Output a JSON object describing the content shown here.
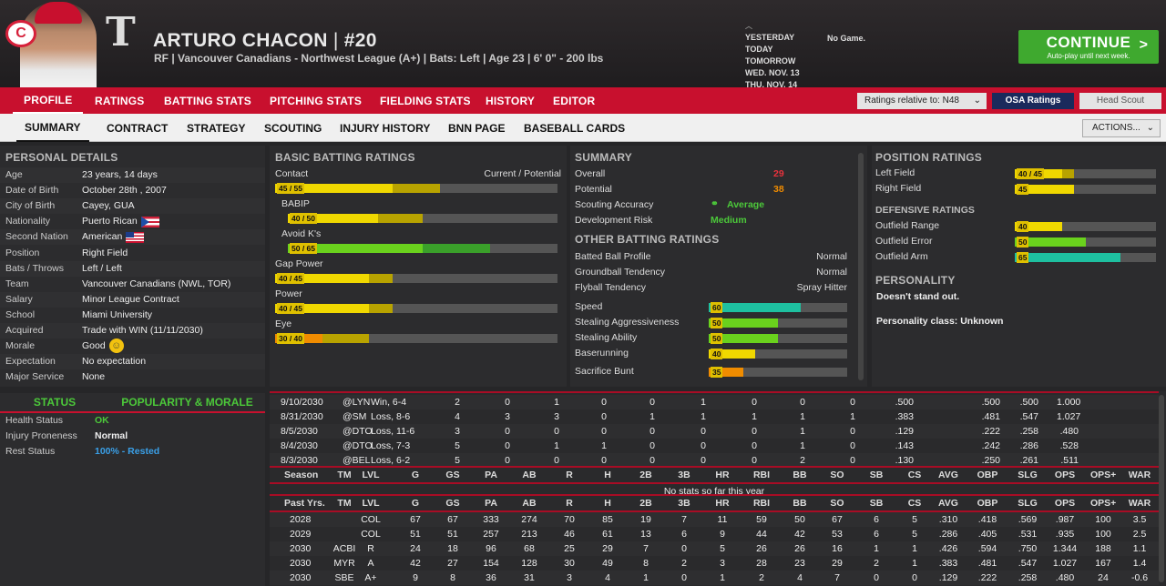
{
  "header": {
    "team_logo": "C",
    "t_logo": "T",
    "name": "ARTURO CHACON",
    "sep": "|",
    "number": "#20",
    "info": "RF | Vancouver Canadians - Northwest League (A+) | Bats: Left | Age 23 | 6' 0\" - 200 lbs"
  },
  "schedule": {
    "days": [
      "YESTERDAY",
      "TODAY",
      "TOMORROW",
      "WED. NOV. 13",
      "THU. NOV. 14"
    ],
    "today_game": "No Game."
  },
  "continue": {
    "label": "CONTINUE",
    "sub": "Auto-play until next week.",
    "arrow": ">"
  },
  "nav": {
    "tabs": [
      "PROFILE",
      "RATINGS",
      "BATTING STATS",
      "PITCHING STATS",
      "FIELDING STATS",
      "HISTORY",
      "EDITOR"
    ],
    "ratings_relative": "Ratings relative to: N48",
    "osa": "OSA Ratings",
    "scout": "Head Scout"
  },
  "subnav": {
    "tabs": [
      "SUMMARY",
      "CONTRACT",
      "STRATEGY",
      "SCOUTING",
      "INJURY HISTORY",
      "BNN PAGE",
      "BASEBALL CARDS"
    ],
    "actions": "ACTIONS..."
  },
  "personal": {
    "title": "PERSONAL DETAILS",
    "rows": [
      {
        "k": "Age",
        "v": "23 years, 14 days"
      },
      {
        "k": "Date of Birth",
        "v": "October 28th , 2007"
      },
      {
        "k": "City of Birth",
        "v": "Cayey, GUA"
      },
      {
        "k": "Nationality",
        "v": "Puerto Rican"
      },
      {
        "k": "Second Nation",
        "v": "American"
      },
      {
        "k": "Position",
        "v": "Right Field"
      },
      {
        "k": "Bats / Throws",
        "v": "Left / Left"
      },
      {
        "k": "Team",
        "v": "Vancouver Canadians (NWL, TOR)"
      },
      {
        "k": "Salary",
        "v": "Minor League Contract"
      },
      {
        "k": "School",
        "v": "Miami University"
      },
      {
        "k": "Acquired",
        "v": "Trade with WIN (11/11/2030)"
      },
      {
        "k": "Morale",
        "v": "Good"
      },
      {
        "k": "Expectation",
        "v": "No expectation"
      },
      {
        "k": "Major Service",
        "v": "None"
      }
    ]
  },
  "status": {
    "tab1": "STATUS",
    "tab2": "POPULARITY & MORALE",
    "rows": [
      {
        "k": "Health Status",
        "v": "OK",
        "color": "#4cc93a"
      },
      {
        "k": "Injury Proneness",
        "v": "Normal",
        "color": "#eeeeee"
      },
      {
        "k": "Rest Status",
        "v": "100% - Rested",
        "color": "#3aa0e8"
      }
    ]
  },
  "batting": {
    "title": "BASIC BATTING RATINGS",
    "col": "Current / Potential",
    "ratings": [
      {
        "name": "Contact",
        "label": "45 / 55",
        "cur": 45,
        "pot": 55,
        "color": "#f0d800"
      },
      {
        "name": "BABIP",
        "label": "40 / 50",
        "cur": 40,
        "pot": 50,
        "color": "#f0d800"
      },
      {
        "name": "Avoid K's",
        "label": "50 / 65",
        "cur": 50,
        "pot": 65,
        "color": "#6ad21d"
      },
      {
        "name": "Gap Power",
        "label": "40 / 45",
        "cur": 40,
        "pot": 45,
        "color": "#f0d800"
      },
      {
        "name": "Power",
        "label": "40 / 45",
        "cur": 40,
        "pot": 45,
        "color": "#f0d800"
      },
      {
        "name": "Eye",
        "label": "30 / 40",
        "cur": 30,
        "pot": 40,
        "color": "#f08c00"
      }
    ]
  },
  "summary": {
    "title": "SUMMARY",
    "overall_k": "Overall",
    "overall_v": "29",
    "potential_k": "Potential",
    "potential_v": "38",
    "acc_k": "Scouting Accuracy",
    "acc_v": "Average",
    "risk_k": "Development Risk",
    "risk_v": "Medium",
    "other_title": "OTHER BATTING RATINGS",
    "other": [
      {
        "k": "Batted Ball Profile",
        "v": "Normal"
      },
      {
        "k": "Groundball Tendency",
        "v": "Normal"
      },
      {
        "k": "Flyball Tendency",
        "v": "Spray Hitter"
      }
    ],
    "speed": [
      {
        "k": "Speed",
        "v": 60,
        "color": "#1ec0a0"
      },
      {
        "k": "Stealing Aggressiveness",
        "v": 50,
        "color": "#6ad21d"
      },
      {
        "k": "Stealing Ability",
        "v": 50,
        "color": "#6ad21d"
      },
      {
        "k": "Baserunning",
        "v": 40,
        "color": "#f0d800"
      },
      {
        "k": "Sacrifice Bunt",
        "v": 35,
        "color": "#f08c00"
      }
    ]
  },
  "position": {
    "title": "POSITION RATINGS",
    "rows": [
      {
        "k": "Left Field",
        "label": "40 / 45",
        "cur": 40,
        "pot": 45,
        "color": "#f0d800"
      },
      {
        "k": "Right Field",
        "label": "45",
        "cur": 45,
        "pot": 45,
        "color": "#f0d800"
      }
    ],
    "def_title": "DEFENSIVE RATINGS",
    "def": [
      {
        "k": "Outfield Range",
        "v": 40,
        "color": "#f0d800"
      },
      {
        "k": "Outfield Error",
        "v": 50,
        "color": "#6ad21d"
      },
      {
        "k": "Outfield Arm",
        "v": 65,
        "color": "#1ec0a0"
      }
    ],
    "pers_title": "PERSONALITY",
    "pers1": "Doesn't stand out.",
    "pers2": "Personality class: Unknown"
  },
  "games": [
    [
      "9/10/2030",
      "@LYN",
      "Win, 6-4",
      "2",
      "0",
      "1",
      "0",
      "0",
      "1",
      "0",
      "0",
      "0",
      ".500",
      ".500",
      ".500",
      "1.000"
    ],
    [
      "8/31/2030",
      "@SM",
      "Loss, 8-6",
      "4",
      "3",
      "3",
      "0",
      "1",
      "1",
      "1",
      "1",
      "1",
      ".383",
      ".481",
      ".547",
      "1.027"
    ],
    [
      "8/5/2030",
      "@DTO",
      "Loss, 11-6",
      "3",
      "0",
      "0",
      "0",
      "0",
      "0",
      "0",
      "1",
      "0",
      ".129",
      ".222",
      ".258",
      ".480"
    ],
    [
      "8/4/2030",
      "@DTO",
      "Loss, 7-3",
      "5",
      "0",
      "1",
      "1",
      "0",
      "0",
      "0",
      "1",
      "0",
      ".143",
      ".242",
      ".286",
      ".528"
    ],
    [
      "8/3/2030",
      "@BEL",
      "Loss, 6-2",
      "5",
      "0",
      "0",
      "0",
      "0",
      "0",
      "0",
      "2",
      "0",
      ".130",
      ".250",
      ".261",
      ".511"
    ]
  ],
  "cols": [
    "TM",
    "LVL",
    "G",
    "GS",
    "PA",
    "AB",
    "R",
    "H",
    "2B",
    "3B",
    "HR",
    "RBI",
    "BB",
    "SO",
    "SB",
    "CS",
    "AVG",
    "OBP",
    "SLG",
    "OPS",
    "OPS+",
    "WAR"
  ],
  "season_label": "Season",
  "no_stats": "No stats so far this year",
  "past_label": "Past Yrs.",
  "past": [
    [
      "2028",
      "",
      "COL",
      "67",
      "67",
      "333",
      "274",
      "70",
      "85",
      "19",
      "7",
      "11",
      "59",
      "50",
      "67",
      "6",
      "5",
      ".310",
      ".418",
      ".569",
      ".987",
      "100",
      "3.5"
    ],
    [
      "2029",
      "",
      "COL",
      "51",
      "51",
      "257",
      "213",
      "46",
      "61",
      "13",
      "6",
      "9",
      "44",
      "42",
      "53",
      "6",
      "5",
      ".286",
      ".405",
      ".531",
      ".935",
      "100",
      "2.5"
    ],
    [
      "2030",
      "ACBI",
      "R",
      "24",
      "18",
      "96",
      "68",
      "25",
      "29",
      "7",
      "0",
      "5",
      "26",
      "26",
      "16",
      "1",
      "1",
      ".426",
      ".594",
      ".750",
      "1.344",
      "188",
      "1.1"
    ],
    [
      "2030",
      "MYR",
      "A",
      "42",
      "27",
      "154",
      "128",
      "30",
      "49",
      "8",
      "2",
      "3",
      "28",
      "23",
      "29",
      "2",
      "1",
      ".383",
      ".481",
      ".547",
      "1.027",
      "167",
      "1.4"
    ],
    [
      "2030",
      "SBE",
      "A+",
      "9",
      "8",
      "36",
      "31",
      "3",
      "4",
      "1",
      "0",
      "1",
      "2",
      "4",
      "7",
      "0",
      "0",
      ".129",
      ".222",
      ".258",
      ".480",
      "24",
      "-0.6"
    ]
  ]
}
